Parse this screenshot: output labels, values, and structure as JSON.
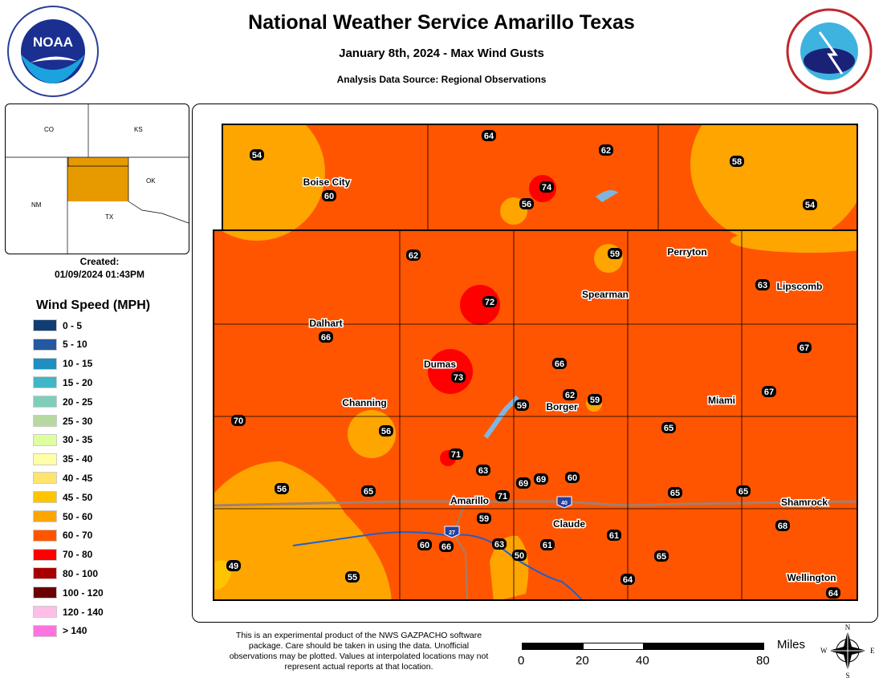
{
  "header": {
    "title": "National Weather Service Amarillo Texas",
    "subtitle": "January 8th, 2024 - Max Wind Gusts",
    "source": "Analysis Data Source: Regional Observations"
  },
  "logos": {
    "noaa": "NOAA",
    "noaa_ring": "NATIONAL OCEANIC AND ATMOSPHERIC ADMINISTRATION U.S. DEPARTMENT OF COMMERCE",
    "nws_ring": "NATIONAL WEATHER SERVICE U.S. DEPARTMENT OF COMMERCE"
  },
  "inset": {
    "states": [
      "CO",
      "KS",
      "NM",
      "OK",
      "TX"
    ]
  },
  "created": {
    "label": "Created:",
    "value": "01/09/2024 01:43PM"
  },
  "legend": {
    "title": "Wind Speed (MPH)",
    "items": [
      {
        "label": "0 - 5",
        "color": "#123d73"
      },
      {
        "label": "5 - 10",
        "color": "#2458a3"
      },
      {
        "label": "10 - 15",
        "color": "#1f8fc2"
      },
      {
        "label": "15 - 20",
        "color": "#40b6c6"
      },
      {
        "label": "20 - 25",
        "color": "#80cdb9"
      },
      {
        "label": "25 - 30",
        "color": "#b7d9a1"
      },
      {
        "label": "30 - 35",
        "color": "#deff9e"
      },
      {
        "label": "35 - 40",
        "color": "#ffffa8"
      },
      {
        "label": "40 - 45",
        "color": "#ffe56e"
      },
      {
        "label": "45 - 50",
        "color": "#ffc400"
      },
      {
        "label": "50 - 60",
        "color": "#ffa500"
      },
      {
        "label": "60 - 70",
        "color": "#ff5500"
      },
      {
        "label": "70 - 80",
        "color": "#ff0000"
      },
      {
        "label": "80 - 100",
        "color": "#a80000"
      },
      {
        "label": "100 - 120",
        "color": "#6b0000"
      },
      {
        "label": "120 - 140",
        "color": "#ffbee8"
      },
      {
        "label": "> 140",
        "color": "#ff73df"
      }
    ]
  },
  "cities": [
    "Boise City",
    "Perryton",
    "Lipscomb",
    "Spearman",
    "Dalhart",
    "Dumas",
    "Channing",
    "Borger",
    "Miami",
    "Amarillo",
    "Shamrock",
    "Claude",
    "Wellington"
  ],
  "observations": [
    "54",
    "60",
    "64",
    "62",
    "74",
    "56",
    "58",
    "54",
    "62",
    "59",
    "72",
    "63",
    "66",
    "66",
    "73",
    "67",
    "62",
    "59",
    "59",
    "67",
    "70",
    "56",
    "65",
    "71",
    "63",
    "69",
    "69",
    "60",
    "56",
    "65",
    "71",
    "65",
    "65",
    "59",
    "68",
    "60",
    "66",
    "63",
    "61",
    "61",
    "50",
    "65",
    "49",
    "55",
    "64",
    "64"
  ],
  "highways": [
    "27",
    "40"
  ],
  "disclaimer": "This is an experimental product of the NWS GAZPACHO software package. Care should be taken in using the data. Unofficial observations may be plotted. Values at interpolated locations may not represent actual reports at that location.",
  "scale": {
    "unit": "Miles",
    "ticks": [
      "0",
      "20",
      "40",
      "80"
    ]
  },
  "compass": {
    "n": "N",
    "s": "S",
    "e": "E",
    "w": "W"
  }
}
